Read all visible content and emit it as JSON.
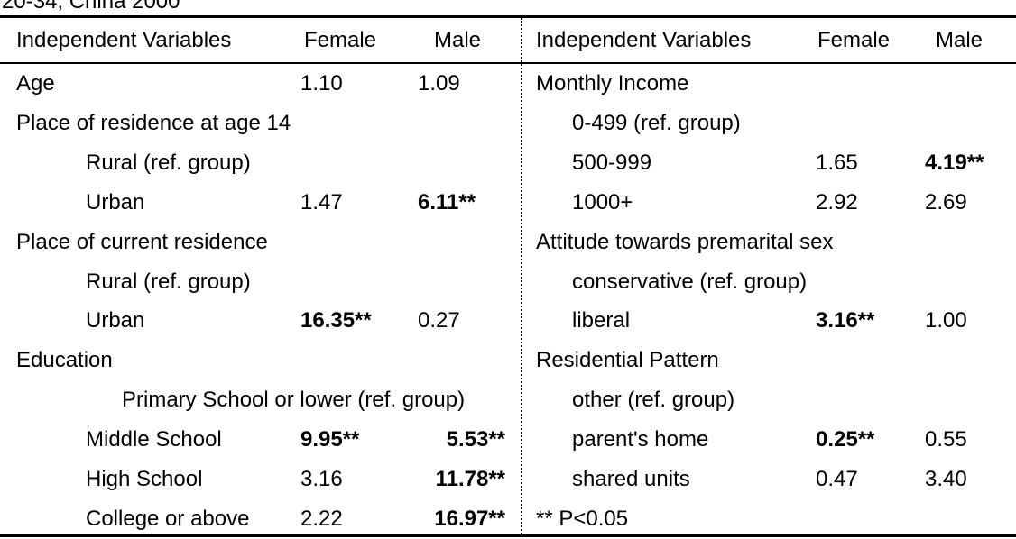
{
  "caption": "20-34, China 2000",
  "left": {
    "header": {
      "var": "Independent Variables",
      "female": "Female",
      "male": "Male"
    },
    "rows": [
      {
        "label": "Age",
        "indent": 0,
        "female": "1.10",
        "male": "1.09",
        "female_bold": false,
        "male_bold": false
      },
      {
        "label": "Place of residence at age 14",
        "indent": 0,
        "female": "",
        "male": "",
        "female_bold": false,
        "male_bold": false
      },
      {
        "label": "Rural (ref.  group)",
        "indent": 1,
        "female": "",
        "male": "",
        "female_bold": false,
        "male_bold": false
      },
      {
        "label": "Urban",
        "indent": 1,
        "female": "1.47",
        "male": "6.11**",
        "female_bold": false,
        "male_bold": true
      },
      {
        "label": "Place of current residence",
        "indent": 0,
        "female": "",
        "male": "",
        "female_bold": false,
        "male_bold": false
      },
      {
        "label": "Rural (ref. group)",
        "indent": 1,
        "female": "",
        "male": "",
        "female_bold": false,
        "male_bold": false
      },
      {
        "label": "Urban",
        "indent": 1,
        "female": "16.35**",
        "male": "0.27",
        "female_bold": true,
        "male_bold": false
      },
      {
        "label": "Education",
        "indent": 0,
        "female": "",
        "male": "",
        "female_bold": false,
        "male_bold": false
      },
      {
        "label": "Primary School or lower (ref. group)",
        "indent": 2,
        "female": "",
        "male": "",
        "female_bold": false,
        "male_bold": false
      },
      {
        "label": "Middle School",
        "indent": 1,
        "female": "9.95**",
        "male": "5.53**",
        "female_bold": true,
        "male_bold": true,
        "male_right": true
      },
      {
        "label": "High School",
        "indent": 1,
        "female": "3.16",
        "male": "11.78**",
        "female_bold": false,
        "male_bold": true,
        "male_right": true
      },
      {
        "label": "College or above",
        "indent": 1,
        "female": "2.22",
        "male": "16.97**",
        "female_bold": false,
        "male_bold": true,
        "male_right": true
      }
    ]
  },
  "right": {
    "header": {
      "var": "Independent Variables",
      "female": "Female",
      "male": "Male"
    },
    "rows": [
      {
        "label": "Monthly Income",
        "indent": 0,
        "female": "",
        "male": "",
        "female_bold": false,
        "male_bold": false
      },
      {
        "label": "0-499  (ref. group)",
        "indent": 1,
        "female": "",
        "male": "",
        "female_bold": false,
        "male_bold": false
      },
      {
        "label": "500-999",
        "indent": 1,
        "female": "1.65",
        "male": "4.19**",
        "female_bold": false,
        "male_bold": true
      },
      {
        "label": "1000+",
        "indent": 1,
        "female": "2.92",
        "male": "2.69",
        "female_bold": false,
        "male_bold": false
      },
      {
        "label": "Attitude towards premarital sex",
        "indent": 0,
        "female": "",
        "male": "",
        "female_bold": false,
        "male_bold": false
      },
      {
        "label": "conservative   (ref. group)",
        "indent": 1,
        "female": "",
        "male": "",
        "female_bold": false,
        "male_bold": false
      },
      {
        "label": "liberal",
        "indent": 1,
        "female": "3.16**",
        "male": "1.00",
        "female_bold": true,
        "male_bold": false
      },
      {
        "label": "Residential Pattern",
        "indent": 0,
        "female": "",
        "male": "",
        "female_bold": false,
        "male_bold": false
      },
      {
        "label": "other  (ref. group)",
        "indent": 1,
        "female": "",
        "male": "",
        "female_bold": false,
        "male_bold": false
      },
      {
        "label": "parent's home",
        "indent": 1,
        "female": "0.25**",
        "male": "0.55",
        "female_bold": true,
        "male_bold": false
      },
      {
        "label": "shared units",
        "indent": 1,
        "female": "0.47",
        "male": "3.40",
        "female_bold": false,
        "male_bold": false
      },
      {
        "label": "** P<0.05",
        "indent": 0,
        "female": "",
        "male": "",
        "female_bold": false,
        "male_bold": false
      }
    ]
  }
}
